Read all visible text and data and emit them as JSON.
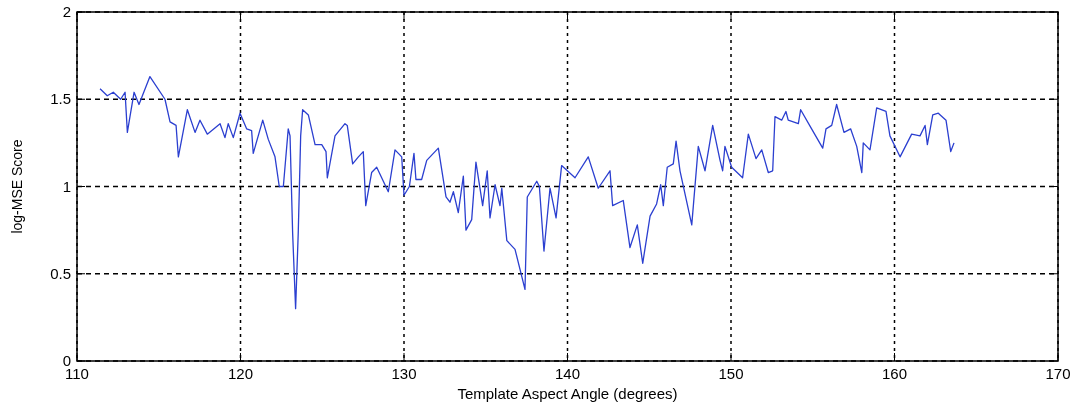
{
  "chart_data": {
    "type": "line",
    "xlabel": "Template Aspect Angle (degrees)",
    "ylabel": "log-MSE Score",
    "xlim": [
      110,
      170
    ],
    "ylim": [
      0,
      2
    ],
    "xticks": [
      110,
      120,
      130,
      140,
      150,
      160,
      170
    ],
    "yticks": [
      0,
      0.5,
      1,
      1.5,
      2
    ],
    "grid": true,
    "marker": "none",
    "line_style": "solid",
    "series": [
      {
        "color": "#2b3fd0",
        "x": [
          111.41,
          111.85,
          112.22,
          112.67,
          112.94,
          113.08,
          113.24,
          113.49,
          113.79,
          114.46,
          115.38,
          115.69,
          116.06,
          116.2,
          116.75,
          117.22,
          117.52,
          117.97,
          118.75,
          119.05,
          119.25,
          119.56,
          119.97,
          120.38,
          120.68,
          120.78,
          121.36,
          121.7,
          122.11,
          122.37,
          122.62,
          122.92,
          123.03,
          123.19,
          123.37,
          123.53,
          123.68,
          123.8,
          124.15,
          124.56,
          124.97,
          125.23,
          125.31,
          125.78,
          126.39,
          126.53,
          126.86,
          127.21,
          127.51,
          127.66,
          128.02,
          128.33,
          129.04,
          129.45,
          129.86,
          130.0,
          130.33,
          130.61,
          130.73,
          131.08,
          131.39,
          132.1,
          132.57,
          132.81,
          133.02,
          133.32,
          133.63,
          133.79,
          134.14,
          134.4,
          134.81,
          135.09,
          135.26,
          135.57,
          135.87,
          135.98,
          136.29,
          136.79,
          137.4,
          137.54,
          138.12,
          138.28,
          138.56,
          138.93,
          139.3,
          139.64,
          140.46,
          141.27,
          141.88,
          142.6,
          142.76,
          143.41,
          143.82,
          144.27,
          144.6,
          145.05,
          145.45,
          145.7,
          145.86,
          146.1,
          146.47,
          146.64,
          146.88,
          147.6,
          148.0,
          148.41,
          148.88,
          149.33,
          149.49,
          149.63,
          150.04,
          150.71,
          151.06,
          151.53,
          151.88,
          152.28,
          152.55,
          152.69,
          153.1,
          153.36,
          153.5,
          154.12,
          154.26,
          154.93,
          155.61,
          155.81,
          156.16,
          156.46,
          156.91,
          157.32,
          157.69,
          158.0,
          158.09,
          158.5,
          158.91,
          159.48,
          159.72,
          160.34,
          161.05,
          161.56,
          161.87,
          162.01,
          162.34,
          162.68,
          163.15,
          163.44,
          163.64
        ],
        "values": [
          1.56,
          1.52,
          1.54,
          1.5,
          1.54,
          1.31,
          1.4,
          1.54,
          1.47,
          1.63,
          1.5,
          1.37,
          1.35,
          1.17,
          1.44,
          1.31,
          1.38,
          1.3,
          1.36,
          1.28,
          1.36,
          1.28,
          1.42,
          1.33,
          1.32,
          1.19,
          1.38,
          1.27,
          1.17,
          1.0,
          1.0,
          1.33,
          1.29,
          0.73,
          0.3,
          0.73,
          1.29,
          1.44,
          1.41,
          1.24,
          1.24,
          1.2,
          1.05,
          1.29,
          1.36,
          1.35,
          1.13,
          1.17,
          1.2,
          0.89,
          1.08,
          1.11,
          0.97,
          1.21,
          1.17,
          0.95,
          1.0,
          1.19,
          1.04,
          1.04,
          1.15,
          1.22,
          0.94,
          0.91,
          0.97,
          0.85,
          1.06,
          0.75,
          0.81,
          1.14,
          0.89,
          1.09,
          0.82,
          1.01,
          0.89,
          0.99,
          0.69,
          0.64,
          0.41,
          0.94,
          1.03,
          1.0,
          0.63,
          0.99,
          0.82,
          1.12,
          1.05,
          1.17,
          0.99,
          1.09,
          0.89,
          0.92,
          0.65,
          0.78,
          0.56,
          0.83,
          0.9,
          1.01,
          0.89,
          1.11,
          1.13,
          1.26,
          1.09,
          0.78,
          1.23,
          1.09,
          1.35,
          1.15,
          1.09,
          1.23,
          1.11,
          1.05,
          1.3,
          1.16,
          1.21,
          1.08,
          1.09,
          1.4,
          1.38,
          1.43,
          1.38,
          1.36,
          1.44,
          1.33,
          1.22,
          1.33,
          1.35,
          1.47,
          1.31,
          1.33,
          1.23,
          1.08,
          1.25,
          1.21,
          1.45,
          1.43,
          1.29,
          1.17,
          1.3,
          1.29,
          1.35,
          1.24,
          1.41,
          1.42,
          1.38,
          1.2,
          1.25
        ]
      }
    ]
  }
}
